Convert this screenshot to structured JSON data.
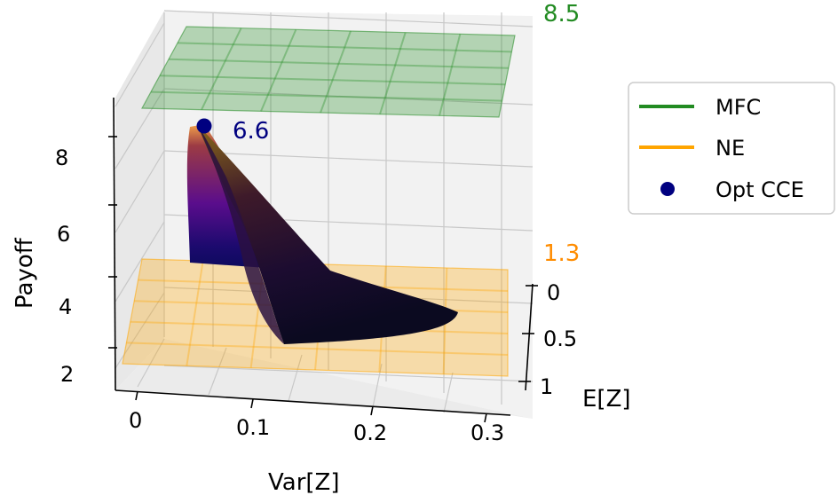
{
  "chart_data": {
    "type": "3d-surface",
    "xlabel": "Var[Z]",
    "ylabel": "E[Z]",
    "zlabel": "Payoff",
    "x_ticks": [
      "0",
      "0.1",
      "0.2",
      "0.3"
    ],
    "y_ticks": [
      "0",
      "0.5",
      "1"
    ],
    "z_ticks": [
      "2",
      "4",
      "6",
      "8"
    ],
    "xlim": [
      -0.02,
      0.31
    ],
    "ylim": [
      0,
      1.1
    ],
    "zlim": [
      1.5,
      9.0
    ],
    "grid": true,
    "series": [
      {
        "name": "MFC",
        "kind": "plane",
        "z": 8.5,
        "label": "8.5",
        "color": "#228b22"
      },
      {
        "name": "NE",
        "kind": "plane",
        "z": 1.3,
        "label": "1.3",
        "color": "#ffa500"
      },
      {
        "name": "Opt CCE",
        "kind": "point",
        "x": 0.0,
        "y": 0.0,
        "z": 6.6,
        "label": "6.6",
        "color": "#000080"
      }
    ],
    "surface": {
      "colormap": "plasma-dark",
      "description": "feasible CCE payoff surface"
    },
    "legend": {
      "placement": "right",
      "entries": [
        "MFC",
        "NE",
        "Opt CCE"
      ]
    }
  }
}
